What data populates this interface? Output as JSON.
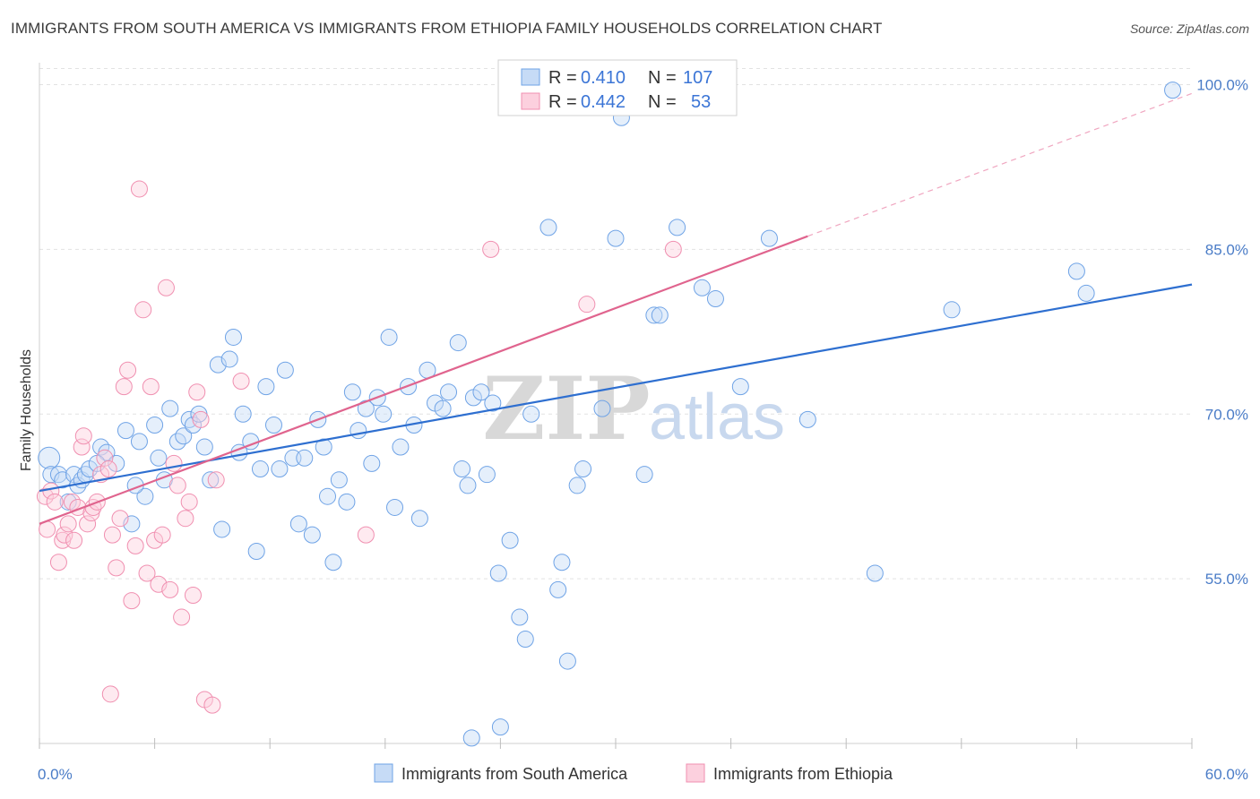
{
  "title": "IMMIGRANTS FROM SOUTH AMERICA VS IMMIGRANTS FROM ETHIOPIA FAMILY HOUSEHOLDS CORRELATION CHART",
  "source": "Source: ZipAtlas.com",
  "watermark": {
    "zip": "ZIP",
    "atlas": "atlas"
  },
  "legend_top": [
    {
      "r_label": "R =",
      "r_value": "0.410",
      "n_label": "N =",
      "n_value": "107"
    },
    {
      "r_label": "R =",
      "r_value": "0.442",
      "n_label": "N =",
      "n_value": "53"
    }
  ],
  "chart_data": {
    "type": "scatter",
    "xlabel": "",
    "ylabel": "Family Households",
    "xlim": [
      0,
      60
    ],
    "ylim": [
      40,
      102
    ],
    "x_tick_labels": [
      {
        "value": 0,
        "label": "0.0%"
      },
      {
        "value": 60,
        "label": "60.0%"
      }
    ],
    "y_tick_labels": [
      {
        "value": 55,
        "label": "55.0%"
      },
      {
        "value": 70,
        "label": "70.0%"
      },
      {
        "value": 85,
        "label": "85.0%"
      },
      {
        "value": 100,
        "label": "100.0%"
      }
    ],
    "grid": true,
    "legend_position": "bottom",
    "colors": {
      "blue": "#6fa3e6",
      "blue_line": "#2e6fd0",
      "pink": "#f08fb0",
      "pink_line": "#e0648e"
    },
    "series": [
      {
        "name": "Immigrants from South America",
        "color": "#6fa3e6",
        "trend": {
          "x": [
            0,
            60
          ],
          "y": [
            63.0,
            81.8
          ],
          "style": "solid"
        },
        "points": [
          [
            0.5,
            66.0
          ],
          [
            0.6,
            64.5
          ],
          [
            1.0,
            64.5
          ],
          [
            1.2,
            64.0
          ],
          [
            1.5,
            62.0
          ],
          [
            1.8,
            64.5
          ],
          [
            2.0,
            63.5
          ],
          [
            2.2,
            64.0
          ],
          [
            2.4,
            64.5
          ],
          [
            2.6,
            65.0
          ],
          [
            3.2,
            67.0
          ],
          [
            3.5,
            66.5
          ],
          [
            4.0,
            65.5
          ],
          [
            4.5,
            68.5
          ],
          [
            4.8,
            60.0
          ],
          [
            5.2,
            67.5
          ],
          [
            5.5,
            62.5
          ],
          [
            6.0,
            69.0
          ],
          [
            6.2,
            66.0
          ],
          [
            6.5,
            64.0
          ],
          [
            6.8,
            70.5
          ],
          [
            7.2,
            67.5
          ],
          [
            7.5,
            68.0
          ],
          [
            7.8,
            69.5
          ],
          [
            8.0,
            69.0
          ],
          [
            8.3,
            70.0
          ],
          [
            8.6,
            67.0
          ],
          [
            8.9,
            64.0
          ],
          [
            9.3,
            74.5
          ],
          [
            9.5,
            59.5
          ],
          [
            9.9,
            75.0
          ],
          [
            10.1,
            77.0
          ],
          [
            10.4,
            66.5
          ],
          [
            10.6,
            70.0
          ],
          [
            11.0,
            67.5
          ],
          [
            11.3,
            57.5
          ],
          [
            11.5,
            65.0
          ],
          [
            11.8,
            72.5
          ],
          [
            12.2,
            69.0
          ],
          [
            12.5,
            65.0
          ],
          [
            12.8,
            74.0
          ],
          [
            13.2,
            66.0
          ],
          [
            13.5,
            60.0
          ],
          [
            13.8,
            66.0
          ],
          [
            14.2,
            59.0
          ],
          [
            14.5,
            69.5
          ],
          [
            14.8,
            67.0
          ],
          [
            15.0,
            62.5
          ],
          [
            15.3,
            56.5
          ],
          [
            15.6,
            64.0
          ],
          [
            16.0,
            62.0
          ],
          [
            16.3,
            72.0
          ],
          [
            16.6,
            68.5
          ],
          [
            17.0,
            70.5
          ],
          [
            17.3,
            65.5
          ],
          [
            17.6,
            71.5
          ],
          [
            17.9,
            70.0
          ],
          [
            18.2,
            77.0
          ],
          [
            18.5,
            61.5
          ],
          [
            18.8,
            67.0
          ],
          [
            19.2,
            72.5
          ],
          [
            19.5,
            69.0
          ],
          [
            19.8,
            60.5
          ],
          [
            20.2,
            74.0
          ],
          [
            20.6,
            71.0
          ],
          [
            21.0,
            70.5
          ],
          [
            21.3,
            72.0
          ],
          [
            21.8,
            76.5
          ],
          [
            22.0,
            65.0
          ],
          [
            22.3,
            63.5
          ],
          [
            22.6,
            71.5
          ],
          [
            23.0,
            72.0
          ],
          [
            23.3,
            64.5
          ],
          [
            23.6,
            71.0
          ],
          [
            23.9,
            55.5
          ],
          [
            24.5,
            58.5
          ],
          [
            25.0,
            51.5
          ],
          [
            25.3,
            49.5
          ],
          [
            25.6,
            70.0
          ],
          [
            26.5,
            87.0
          ],
          [
            27.0,
            54.0
          ],
          [
            27.2,
            56.5
          ],
          [
            27.5,
            47.5
          ],
          [
            28.0,
            63.5
          ],
          [
            28.3,
            65.0
          ],
          [
            29.3,
            70.5
          ],
          [
            30.0,
            86.0
          ],
          [
            30.3,
            97.0
          ],
          [
            31.5,
            64.5
          ],
          [
            32.0,
            79.0
          ],
          [
            32.3,
            79.0
          ],
          [
            33.2,
            87.0
          ],
          [
            34.5,
            81.5
          ],
          [
            35.2,
            80.5
          ],
          [
            36.5,
            72.5
          ],
          [
            38.0,
            86.0
          ],
          [
            40.0,
            69.5
          ],
          [
            43.5,
            55.5
          ],
          [
            47.5,
            79.5
          ],
          [
            54.0,
            83.0
          ],
          [
            54.5,
            81.0
          ],
          [
            59.0,
            99.5
          ],
          [
            26.0,
            99.5
          ],
          [
            3.0,
            65.5
          ],
          [
            22.5,
            40.5
          ],
          [
            24.0,
            41.5
          ],
          [
            5.0,
            63.5
          ]
        ]
      },
      {
        "name": "Immigrants from Ethiopia",
        "color": "#f08fb0",
        "trend": {
          "x": [
            0,
            40
          ],
          "y": [
            60.0,
            86.2
          ],
          "style": "solid",
          "extension": {
            "x": [
              40,
              60
            ],
            "y": [
              86.2,
              99.2
            ],
            "style": "dashed"
          }
        },
        "points": [
          [
            0.3,
            62.5
          ],
          [
            0.4,
            59.5
          ],
          [
            0.6,
            63.0
          ],
          [
            0.8,
            62.0
          ],
          [
            1.0,
            56.5
          ],
          [
            1.2,
            58.5
          ],
          [
            1.3,
            59.0
          ],
          [
            1.5,
            60.0
          ],
          [
            1.7,
            62.0
          ],
          [
            1.8,
            58.5
          ],
          [
            2.0,
            61.5
          ],
          [
            2.2,
            67.0
          ],
          [
            2.3,
            68.0
          ],
          [
            2.5,
            60.0
          ],
          [
            2.7,
            61.0
          ],
          [
            2.8,
            61.5
          ],
          [
            3.0,
            62.0
          ],
          [
            3.2,
            64.5
          ],
          [
            3.4,
            66.0
          ],
          [
            3.6,
            65.0
          ],
          [
            3.8,
            59.0
          ],
          [
            4.0,
            56.0
          ],
          [
            4.2,
            60.5
          ],
          [
            4.4,
            72.5
          ],
          [
            4.6,
            74.0
          ],
          [
            4.8,
            53.0
          ],
          [
            5.0,
            58.0
          ],
          [
            5.2,
            90.5
          ],
          [
            5.4,
            79.5
          ],
          [
            5.6,
            55.5
          ],
          [
            5.8,
            72.5
          ],
          [
            6.0,
            58.5
          ],
          [
            6.2,
            54.5
          ],
          [
            6.4,
            59.0
          ],
          [
            6.6,
            81.5
          ],
          [
            6.8,
            54.0
          ],
          [
            7.0,
            65.5
          ],
          [
            7.2,
            63.5
          ],
          [
            7.4,
            51.5
          ],
          [
            7.6,
            60.5
          ],
          [
            7.8,
            62.0
          ],
          [
            8.0,
            53.5
          ],
          [
            8.2,
            72.0
          ],
          [
            8.4,
            69.5
          ],
          [
            8.6,
            44.0
          ],
          [
            9.0,
            43.5
          ],
          [
            9.2,
            64.0
          ],
          [
            10.5,
            73.0
          ],
          [
            17.0,
            59.0
          ],
          [
            23.5,
            85.0
          ],
          [
            28.5,
            80.0
          ],
          [
            33.0,
            85.0
          ],
          [
            3.7,
            44.5
          ]
        ]
      }
    ]
  },
  "legend_bottom": [
    {
      "label": "Immigrants from South America"
    },
    {
      "label": "Immigrants from Ethiopia"
    }
  ]
}
